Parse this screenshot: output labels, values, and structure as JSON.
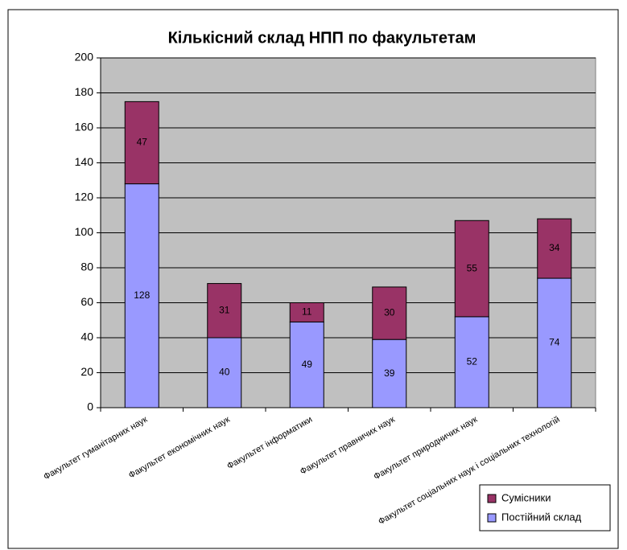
{
  "chart_data": {
    "type": "stacked_bar",
    "title": "Кількісний склад НПП по факультетам",
    "categories": [
      "Факультет гуманітарних наук",
      "Факультет економічних наук",
      "Факультет інформатики",
      "Факультет правничих наук",
      "Факультет природничих наук",
      "Факультет соціальних наук і соціальних технологій"
    ],
    "series": [
      {
        "name": "Постійний склад",
        "color": "#9999ff",
        "values": [
          128,
          40,
          49,
          39,
          52,
          74
        ]
      },
      {
        "name": "Сумісники",
        "color": "#993366",
        "values": [
          47,
          31,
          11,
          30,
          55,
          34
        ]
      }
    ],
    "ylim": [
      0,
      200
    ],
    "yticks": [
      0,
      20,
      40,
      60,
      80,
      100,
      120,
      140,
      160,
      180,
      200
    ],
    "grid": true,
    "legend": "bottom-right"
  }
}
